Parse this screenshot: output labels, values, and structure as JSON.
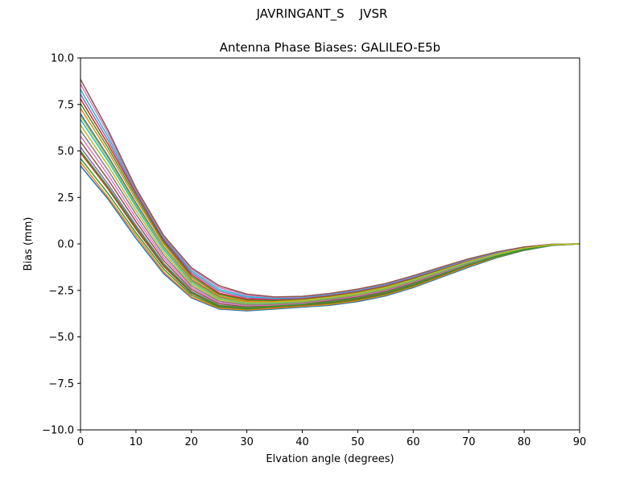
{
  "figure": {
    "suptitle": "JAVRINGANT_S    JVSR"
  },
  "chart_data": {
    "type": "line",
    "title": "Antenna Phase Biases: GALILEO-E5b",
    "xlabel": "Elvation angle (degrees)",
    "ylabel": "Bias (mm)",
    "xlim": [
      0,
      90
    ],
    "ylim": [
      -10,
      10
    ],
    "xticks": [
      0,
      10,
      20,
      30,
      40,
      50,
      60,
      70,
      80,
      90
    ],
    "xtick_labels": [
      "0",
      "10",
      "20",
      "30",
      "40",
      "50",
      "60",
      "70",
      "80",
      "90"
    ],
    "yticks": [
      -10,
      -7.5,
      -5,
      -2.5,
      0,
      2.5,
      5,
      7.5,
      10
    ],
    "ytick_labels": [
      "−10.0",
      "−7.5",
      "−5.0",
      "−2.5",
      "0.0",
      "2.5",
      "5.0",
      "7.5",
      "10.0"
    ],
    "grid": false,
    "legend": "none",
    "x": [
      0,
      5,
      10,
      15,
      20,
      25,
      30,
      35,
      40,
      45,
      50,
      55,
      60,
      65,
      70,
      75,
      80,
      85,
      90
    ],
    "series": [
      {
        "color": "#1f77b4",
        "values": [
          4.2,
          2.4,
          0.3,
          -1.6,
          -2.9,
          -3.5,
          -3.6,
          -3.5,
          -3.4,
          -3.3,
          -3.1,
          -2.8,
          -2.35,
          -1.8,
          -1.25,
          -0.75,
          -0.35,
          -0.08,
          0.0
        ]
      },
      {
        "color": "#ff7f0e",
        "values": [
          4.4,
          2.5,
          0.45,
          -1.5,
          -2.85,
          -3.45,
          -3.55,
          -3.45,
          -3.35,
          -3.25,
          -3.05,
          -2.75,
          -2.3,
          -1.75,
          -1.2,
          -0.72,
          -0.33,
          -0.07,
          0.0
        ]
      },
      {
        "color": "#2ca02c",
        "values": [
          4.6,
          2.7,
          0.6,
          -1.35,
          -2.75,
          -3.4,
          -3.5,
          -3.4,
          -3.3,
          -3.2,
          -3.0,
          -2.7,
          -2.25,
          -1.7,
          -1.15,
          -0.7,
          -0.32,
          -0.07,
          0.0
        ]
      },
      {
        "color": "#d62728",
        "values": [
          4.9,
          2.95,
          0.8,
          -1.2,
          -2.65,
          -3.35,
          -3.45,
          -3.38,
          -3.28,
          -3.15,
          -2.95,
          -2.65,
          -2.2,
          -1.68,
          -1.13,
          -0.68,
          -0.3,
          -0.06,
          0.0
        ]
      },
      {
        "color": "#9467bd",
        "values": [
          5.2,
          3.2,
          1.0,
          -1.05,
          -2.55,
          -3.3,
          -3.42,
          -3.35,
          -3.25,
          -3.1,
          -2.9,
          -2.6,
          -2.15,
          -1.65,
          -1.1,
          -0.66,
          -0.29,
          -0.06,
          0.0
        ]
      },
      {
        "color": "#8c564b",
        "values": [
          5.5,
          3.45,
          1.2,
          -0.9,
          -2.45,
          -3.22,
          -3.38,
          -3.32,
          -3.22,
          -3.05,
          -2.85,
          -2.55,
          -2.1,
          -1.6,
          -1.08,
          -0.64,
          -0.28,
          -0.05,
          0.0
        ]
      },
      {
        "color": "#e377c2",
        "values": [
          5.8,
          3.7,
          1.4,
          -0.75,
          -2.35,
          -3.15,
          -3.32,
          -3.28,
          -3.18,
          -3.0,
          -2.8,
          -2.5,
          -2.05,
          -1.56,
          -1.05,
          -0.62,
          -0.27,
          -0.05,
          0.0
        ]
      },
      {
        "color": "#7f7f7f",
        "values": [
          6.1,
          3.95,
          1.6,
          -0.6,
          -2.25,
          -3.08,
          -3.28,
          -3.25,
          -3.15,
          -2.97,
          -2.76,
          -2.46,
          -2.02,
          -1.52,
          -1.02,
          -0.6,
          -0.26,
          -0.05,
          0.0
        ]
      },
      {
        "color": "#bcbd22",
        "values": [
          6.4,
          4.2,
          1.8,
          -0.45,
          -2.15,
          -3.0,
          -3.22,
          -3.2,
          -3.1,
          -2.93,
          -2.72,
          -2.42,
          -1.98,
          -1.49,
          -0.99,
          -0.58,
          -0.25,
          -0.04,
          0.0
        ]
      },
      {
        "color": "#17becf",
        "values": [
          6.7,
          4.45,
          2.0,
          -0.3,
          -2.05,
          -2.93,
          -3.18,
          -3.17,
          -3.07,
          -2.9,
          -2.68,
          -2.38,
          -1.95,
          -1.46,
          -0.97,
          -0.56,
          -0.24,
          -0.04,
          0.0
        ]
      },
      {
        "color": "#1f77b4",
        "values": [
          7.0,
          4.7,
          2.2,
          -0.15,
          -1.95,
          -2.86,
          -3.12,
          -3.12,
          -3.03,
          -2.86,
          -2.64,
          -2.34,
          -1.91,
          -1.43,
          -0.94,
          -0.54,
          -0.23,
          -0.04,
          0.0
        ]
      },
      {
        "color": "#ff7f0e",
        "values": [
          7.3,
          4.95,
          2.4,
          0.0,
          -1.85,
          -2.8,
          -3.08,
          -3.08,
          -3.0,
          -2.83,
          -2.6,
          -2.3,
          -1.88,
          -1.4,
          -0.92,
          -0.52,
          -0.22,
          -0.03,
          0.0
        ]
      },
      {
        "color": "#2ca02c",
        "values": [
          7.55,
          5.15,
          2.55,
          0.1,
          -1.75,
          -2.72,
          -3.02,
          -3.04,
          -2.96,
          -2.8,
          -2.57,
          -2.27,
          -1.85,
          -1.37,
          -0.9,
          -0.51,
          -0.21,
          -0.03,
          0.0
        ]
      },
      {
        "color": "#d62728",
        "values": [
          7.8,
          5.35,
          2.7,
          0.2,
          -1.65,
          -2.65,
          -2.97,
          -3.0,
          -2.93,
          -2.77,
          -2.54,
          -2.24,
          -1.82,
          -1.35,
          -0.88,
          -0.5,
          -0.2,
          -0.03,
          0.0
        ]
      },
      {
        "color": "#9467bd",
        "values": [
          8.05,
          5.55,
          2.8,
          0.28,
          -1.55,
          -2.55,
          -2.9,
          -2.96,
          -2.9,
          -2.74,
          -2.51,
          -2.21,
          -1.79,
          -1.32,
          -0.86,
          -0.48,
          -0.19,
          -0.02,
          0.0
        ]
      },
      {
        "color": "#17becf",
        "values": [
          8.3,
          5.75,
          2.9,
          0.35,
          -1.45,
          -2.45,
          -2.83,
          -2.92,
          -2.87,
          -2.71,
          -2.48,
          -2.18,
          -1.76,
          -1.3,
          -0.84,
          -0.47,
          -0.18,
          -0.02,
          0.0
        ]
      },
      {
        "color": "#e377c2",
        "values": [
          8.6,
          5.95,
          2.95,
          0.4,
          -1.35,
          -2.35,
          -2.76,
          -2.88,
          -2.84,
          -2.68,
          -2.45,
          -2.15,
          -1.73,
          -1.27,
          -0.82,
          -0.45,
          -0.17,
          -0.02,
          0.0
        ]
      },
      {
        "color": "#8c564b",
        "values": [
          8.85,
          6.1,
          3.0,
          0.45,
          -1.28,
          -2.25,
          -2.7,
          -2.85,
          -2.82,
          -2.66,
          -2.43,
          -2.13,
          -1.71,
          -1.25,
          -0.8,
          -0.44,
          -0.16,
          -0.02,
          0.0
        ]
      },
      {
        "color": "#2ca02c",
        "values": [
          5.0,
          3.05,
          0.9,
          -1.1,
          -2.6,
          -3.32,
          -3.44,
          -3.36,
          -3.26,
          -3.12,
          -2.92,
          -2.62,
          -2.18,
          -1.66,
          -1.11,
          -0.67,
          -0.29,
          -0.06,
          0.0
        ]
      },
      {
        "color": "#bcbd22",
        "values": [
          6.9,
          4.6,
          2.1,
          -0.2,
          -2.0,
          -2.9,
          -3.15,
          -3.14,
          -3.05,
          -2.88,
          -2.66,
          -2.36,
          -1.93,
          -1.44,
          -0.95,
          -0.55,
          -0.23,
          -0.04,
          0.0
        ]
      }
    ]
  }
}
